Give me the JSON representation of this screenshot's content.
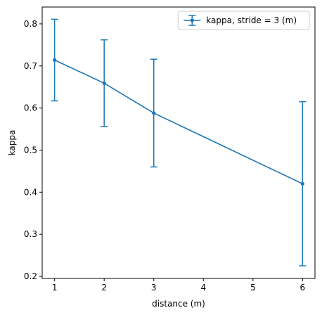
{
  "chart_data": {
    "type": "line",
    "xlabel": "distance (m)",
    "ylabel": "kappa",
    "xlim": [
      0.75,
      6.25
    ],
    "ylim": [
      0.195,
      0.84
    ],
    "xticks": [
      1,
      2,
      3,
      4,
      5,
      6
    ],
    "yticks": [
      0.2,
      0.3,
      0.4,
      0.5,
      0.6,
      0.7,
      0.8
    ],
    "grid": false,
    "legend_position": "top-right",
    "series": [
      {
        "name": "kappa, stride = 3 (m)",
        "color": "#1f77b4",
        "x": [
          1,
          2,
          3,
          6
        ],
        "y": [
          0.714,
          0.659,
          0.588,
          0.42
        ],
        "err": [
          0.097,
          0.103,
          0.128,
          0.195
        ]
      }
    ]
  }
}
